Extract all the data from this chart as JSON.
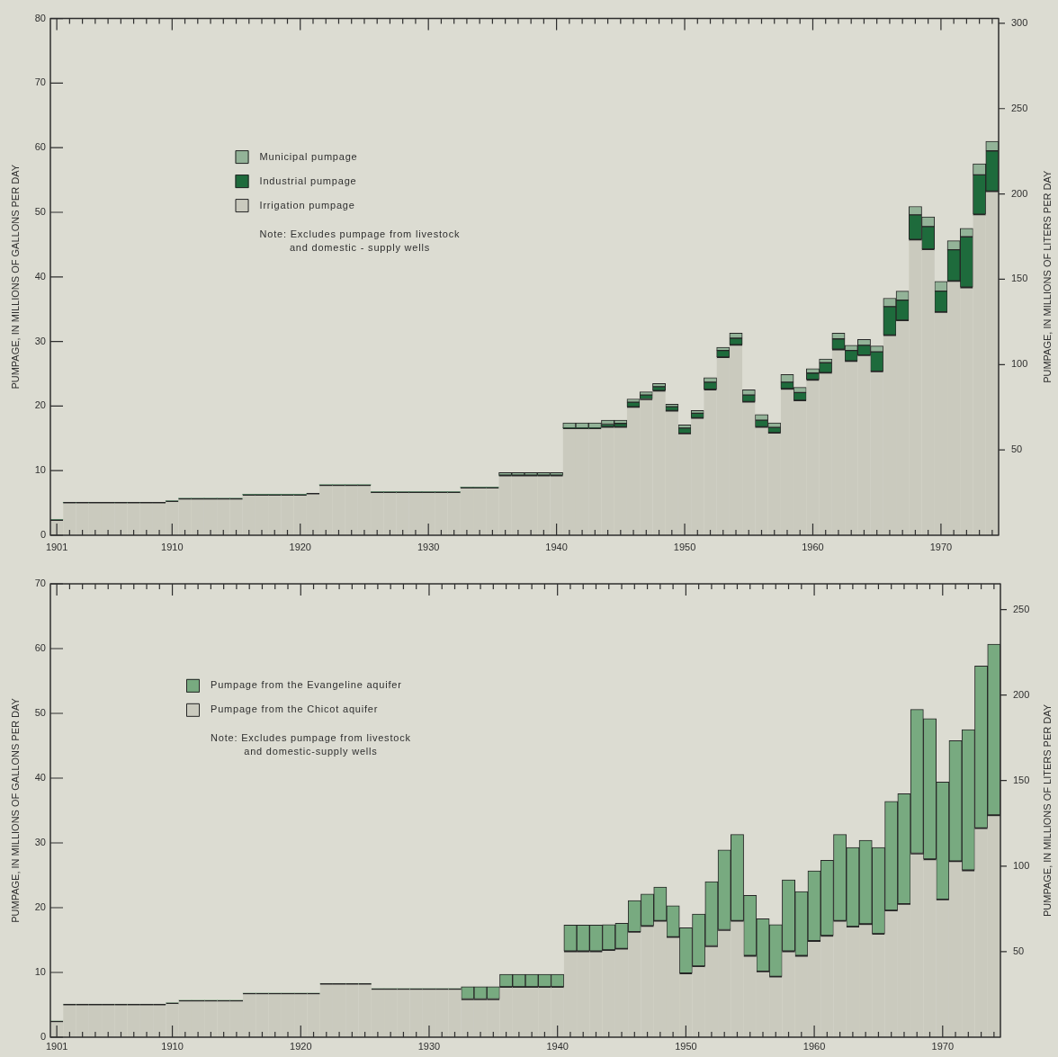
{
  "chart_data": [
    {
      "type": "bar",
      "stacked": true,
      "categories": [
        "1901",
        null,
        null,
        null,
        null,
        null,
        null,
        null,
        null,
        "1910",
        null,
        null,
        null,
        null,
        null,
        null,
        null,
        null,
        null,
        "1920",
        null,
        null,
        null,
        null,
        null,
        null,
        null,
        null,
        null,
        "1930",
        null,
        null,
        null,
        null,
        null,
        null,
        null,
        null,
        null,
        "1940",
        null,
        null,
        null,
        null,
        null,
        null,
        null,
        null,
        null,
        "1950",
        null,
        null,
        null,
        null,
        null,
        null,
        null,
        null,
        null,
        "1960",
        null,
        null,
        null,
        null,
        null,
        null,
        null,
        null,
        null,
        "1970",
        null,
        null,
        null,
        null
      ],
      "series": [
        {
          "name": "Irrigation pumpage",
          "color": "#cacabe",
          "values": [
            2.4,
            5.1,
            5.1,
            5.1,
            5.1,
            5.1,
            5.1,
            5.1,
            5.1,
            5.3,
            5.7,
            5.7,
            5.7,
            5.7,
            5.7,
            6.3,
            6.3,
            6.3,
            6.3,
            6.3,
            6.5,
            7.8,
            7.8,
            7.8,
            7.8,
            6.7,
            6.7,
            6.7,
            6.7,
            6.7,
            6.7,
            6.7,
            7.4,
            7.4,
            7.4,
            9.3,
            9.3,
            9.3,
            9.3,
            9.3,
            16.6,
            16.6,
            16.6,
            16.8,
            16.8,
            19.9,
            21.1,
            22.4,
            19.3,
            15.8,
            18.2,
            22.6,
            27.6,
            29.5,
            20.7,
            16.8,
            15.9,
            22.7,
            20.9,
            24.1,
            25.2,
            28.8,
            27.0,
            27.9,
            25.4,
            31.0,
            33.3,
            45.8,
            44.3,
            34.6,
            39.4,
            38.4,
            49.7,
            53.3
          ]
        },
        {
          "name": "Industrial pumpage",
          "color": "#1e6b3c",
          "values": [
            0,
            0,
            0,
            0,
            0,
            0,
            0,
            0,
            0,
            0,
            0,
            0,
            0,
            0,
            0,
            0,
            0,
            0,
            0,
            0,
            0,
            0,
            0,
            0,
            0,
            0,
            0,
            0,
            0,
            0,
            0,
            0,
            0,
            0,
            0,
            0,
            0,
            0,
            0,
            0,
            0,
            0,
            0,
            0.4,
            0.5,
            0.7,
            0.6,
            0.6,
            0.6,
            0.8,
            0.7,
            1.1,
            1.0,
            1.0,
            1.0,
            1.0,
            0.8,
            1.0,
            1.2,
            1.0,
            1.5,
            1.6,
            1.6,
            1.5,
            3.0,
            4.4,
            3.1,
            3.8,
            3.5,
            3.2,
            4.8,
            7.8,
            6.1,
            6.2
          ]
        },
        {
          "name": "Municipal pumpage",
          "color": "#93b398",
          "values": [
            0,
            0,
            0,
            0,
            0,
            0,
            0,
            0,
            0,
            0,
            0,
            0,
            0,
            0,
            0,
            0,
            0,
            0,
            0,
            0,
            0,
            0,
            0,
            0,
            0,
            0,
            0,
            0,
            0,
            0,
            0,
            0,
            0,
            0,
            0,
            0.4,
            0.4,
            0.4,
            0.4,
            0.4,
            0.8,
            0.8,
            0.8,
            0.6,
            0.5,
            0.5,
            0.5,
            0.5,
            0.4,
            0.5,
            0.4,
            0.7,
            0.5,
            0.8,
            0.8,
            0.9,
            0.7,
            1.2,
            0.8,
            0.7,
            0.6,
            0.9,
            0.8,
            0.9,
            0.9,
            1.3,
            1.4,
            1.3,
            1.5,
            1.5,
            1.4,
            1.3,
            1.7,
            1.5
          ]
        }
      ],
      "ylabel": "PUMPAGE, IN MILLIONS OF GALLONS PER DAY",
      "y2label": "PUMPAGE, IN MILLIONS OF LITERS PER DAY",
      "ylim": [
        0,
        80
      ],
      "yticks": [
        0,
        10,
        20,
        30,
        40,
        50,
        60,
        70,
        80
      ],
      "y2lim": [
        0,
        302.8
      ],
      "y2ticks": [
        50,
        100,
        150,
        200,
        250,
        300
      ],
      "legend": "top left",
      "annotations": [
        "Note: Excludes pumpage from livestock\nand domestic - supply wells"
      ]
    },
    {
      "type": "bar",
      "stacked": true,
      "categories": [
        "1901",
        null,
        null,
        null,
        null,
        null,
        null,
        null,
        null,
        "1910",
        null,
        null,
        null,
        null,
        null,
        null,
        null,
        null,
        null,
        "1920",
        null,
        null,
        null,
        null,
        null,
        null,
        null,
        null,
        null,
        "1930",
        null,
        null,
        null,
        null,
        null,
        null,
        null,
        null,
        null,
        "1940",
        null,
        null,
        null,
        null,
        null,
        null,
        null,
        null,
        null,
        "1950",
        null,
        null,
        null,
        null,
        null,
        null,
        null,
        null,
        null,
        "1960",
        null,
        null,
        null,
        null,
        null,
        null,
        null,
        null,
        null,
        "1970",
        null,
        null,
        null,
        null
      ],
      "series": [
        {
          "name": "Pumpage from the Chicot aquifer",
          "color": "#cacabe",
          "values": [
            2.5,
            5.1,
            5.1,
            5.1,
            5.1,
            5.1,
            5.1,
            5.1,
            5.1,
            5.3,
            5.7,
            5.7,
            5.7,
            5.7,
            5.7,
            6.8,
            6.8,
            6.8,
            6.8,
            6.8,
            6.8,
            8.3,
            8.3,
            8.3,
            8.3,
            7.5,
            7.5,
            7.5,
            7.5,
            7.5,
            7.5,
            7.5,
            5.9,
            5.9,
            5.9,
            7.8,
            7.8,
            7.8,
            7.8,
            7.8,
            13.3,
            13.3,
            13.3,
            13.5,
            13.7,
            16.3,
            17.2,
            18.0,
            15.5,
            9.9,
            11.0,
            14.1,
            16.6,
            18.0,
            12.6,
            10.2,
            9.4,
            13.3,
            12.6,
            14.9,
            15.7,
            18.0,
            17.1,
            17.5,
            16.0,
            19.6,
            20.6,
            28.4,
            27.5,
            21.3,
            27.2,
            25.8,
            32.3,
            34.3
          ]
        },
        {
          "name": "Pumpage from the Evangeline aquifer",
          "color": "#78aa80",
          "values": [
            0,
            0,
            0,
            0,
            0,
            0,
            0,
            0,
            0,
            0,
            0,
            0,
            0,
            0,
            0,
            0,
            0,
            0,
            0,
            0,
            0,
            0,
            0,
            0,
            0,
            0,
            0,
            0,
            0,
            0,
            0,
            0,
            1.9,
            1.9,
            1.9,
            1.9,
            1.9,
            1.9,
            1.9,
            1.9,
            4.0,
            4.0,
            4.0,
            3.9,
            3.9,
            4.8,
            4.9,
            5.2,
            4.8,
            7.0,
            8.0,
            9.9,
            12.3,
            13.3,
            9.3,
            8.1,
            8.0,
            11.0,
            9.9,
            10.8,
            11.6,
            13.3,
            12.2,
            12.9,
            13.3,
            16.8,
            17.0,
            22.2,
            21.7,
            18.1,
            18.6,
            21.7,
            25.0,
            26.4
          ]
        }
      ],
      "ylabel": "PUMPAGE, IN MILLIONS OF GALLONS PER DAY",
      "y2label": "PUMPAGE, IN MILLIONS OF LITERS PER DAY",
      "ylim": [
        0,
        70
      ],
      "yticks": [
        0,
        10,
        20,
        30,
        40,
        50,
        60,
        70
      ],
      "y2lim": [
        0,
        265
      ],
      "y2ticks": [
        50,
        100,
        150,
        200,
        250
      ],
      "legend": "top left",
      "annotations": [
        "Note: Excludes pumpage from livestock\nand domestic-supply wells"
      ]
    }
  ]
}
